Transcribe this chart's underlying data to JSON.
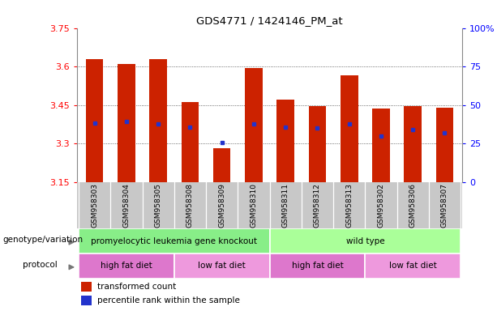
{
  "title": "GDS4771 / 1424146_PM_at",
  "samples": [
    "GSM958303",
    "GSM958304",
    "GSM958305",
    "GSM958308",
    "GSM958309",
    "GSM958310",
    "GSM958311",
    "GSM958312",
    "GSM958313",
    "GSM958302",
    "GSM958306",
    "GSM958307"
  ],
  "bar_bottoms": [
    3.15,
    3.15,
    3.15,
    3.15,
    3.15,
    3.15,
    3.15,
    3.15,
    3.15,
    3.15,
    3.15,
    3.15
  ],
  "bar_tops": [
    3.63,
    3.61,
    3.63,
    3.46,
    3.28,
    3.595,
    3.47,
    3.445,
    3.565,
    3.435,
    3.445,
    3.44
  ],
  "blue_dot_y": [
    3.38,
    3.385,
    3.375,
    3.365,
    3.305,
    3.375,
    3.365,
    3.36,
    3.375,
    3.33,
    3.355,
    3.34
  ],
  "ylim": [
    3.15,
    3.75
  ],
  "yticks_left": [
    3.15,
    3.3,
    3.45,
    3.6,
    3.75
  ],
  "yticks_right_labels": [
    "0",
    "25",
    "50",
    "75",
    "100%"
  ],
  "yticks_right_vals": [
    3.15,
    3.3,
    3.45,
    3.6,
    3.75
  ],
  "bar_color": "#cc2200",
  "dot_color": "#2233cc",
  "genotype_groups": [
    {
      "label": "promyelocytic leukemia gene knockout",
      "start": 0,
      "end": 6,
      "color": "#88ee88"
    },
    {
      "label": "wild type",
      "start": 6,
      "end": 12,
      "color": "#aaff99"
    }
  ],
  "protocol_groups": [
    {
      "label": "high fat diet",
      "start": 0,
      "end": 3,
      "color": "#dd77cc"
    },
    {
      "label": "low fat diet",
      "start": 3,
      "end": 6,
      "color": "#ee99dd"
    },
    {
      "label": "high fat diet",
      "start": 6,
      "end": 9,
      "color": "#dd77cc"
    },
    {
      "label": "low fat diet",
      "start": 9,
      "end": 12,
      "color": "#ee99dd"
    }
  ],
  "left_labels": [
    "genotype/variation",
    "protocol"
  ],
  "legend_items": [
    {
      "label": "transformed count",
      "color": "#cc2200"
    },
    {
      "label": "percentile rank within the sample",
      "color": "#2233cc"
    }
  ],
  "xtick_bg": "#c8c8c8",
  "bar_width": 0.55
}
